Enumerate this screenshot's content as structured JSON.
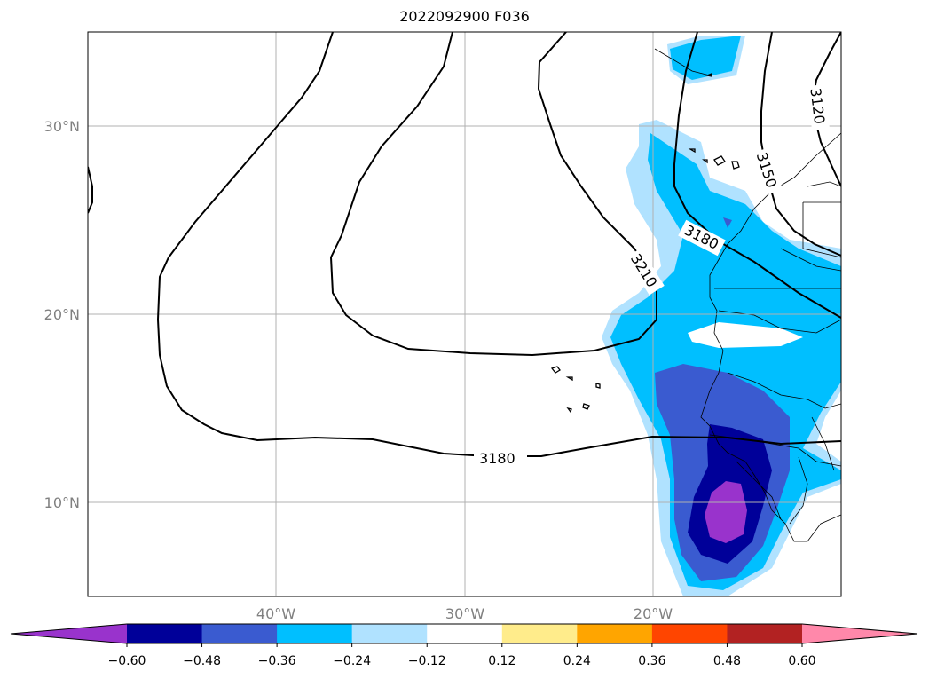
{
  "title": "2022092900 F036",
  "map": {
    "lat_labels": [
      "30°N",
      "20°N",
      "10°N"
    ],
    "lon_labels": [
      "40°W",
      "30°W",
      "20°W"
    ],
    "contour_labels": [
      "3120",
      "3150",
      "3180",
      "3210",
      "3180"
    ]
  },
  "colorbar": {
    "colors": [
      "#9933cc",
      "#000099",
      "#3a5bd0",
      "#00bfff",
      "#b0e2ff",
      "#ffffff",
      "#ffec8b",
      "#ffa500",
      "#ff4500",
      "#b22222",
      "#ff88aa"
    ],
    "ticks": [
      "−0.60",
      "−0.48",
      "−0.36",
      "−0.24",
      "−0.12",
      "0.12",
      "0.24",
      "0.36",
      "0.48",
      "0.60"
    ]
  }
}
